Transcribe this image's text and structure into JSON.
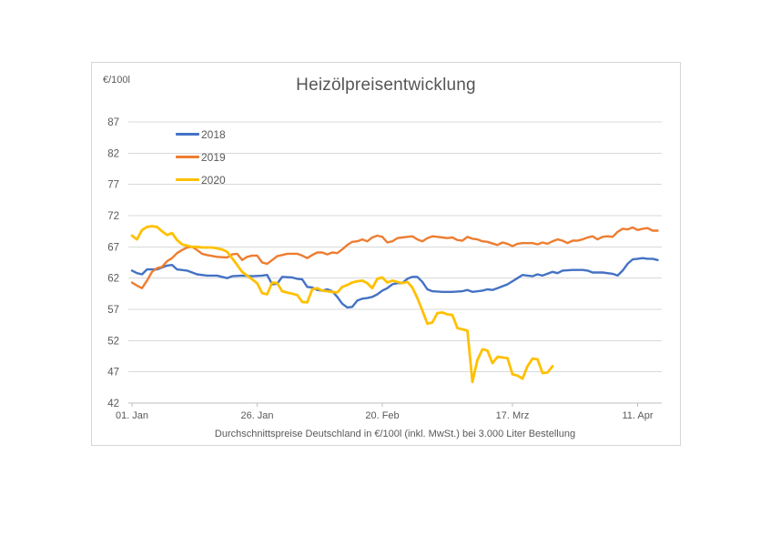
{
  "chart": {
    "title": "Heizölpreisentwicklung",
    "unit_label": "€/100l",
    "footnote": "Durchschnittspreise Deutschland in €/100l (inkl. MwSt.) bei 3.000 Liter Bestellung"
  },
  "chart_data": {
    "type": "line",
    "title": "Heizölpreisentwicklung",
    "xlabel": "",
    "ylabel": "€/100l",
    "ylim": [
      42,
      87
    ],
    "grid": true,
    "legend_position": "inside-top-left",
    "colors": {
      "grid": "#d9d9d9",
      "axis": "#bfbfbf",
      "text": "#595959"
    },
    "y_axis": {
      "min": 42,
      "max": 87,
      "step": 5,
      "ticks": [
        87,
        82,
        77,
        72,
        67,
        62,
        57,
        52,
        47,
        42
      ]
    },
    "x_axis": {
      "unit": "day index from Jan 1",
      "day_span": 106,
      "ticks": [
        {
          "day": 0,
          "label": "01. Jan"
        },
        {
          "day": 25,
          "label": "26. Jan"
        },
        {
          "day": 50,
          "label": "20. Feb"
        },
        {
          "day": 76,
          "label": "17. Mrz"
        },
        {
          "day": 101,
          "label": "11. Apr"
        }
      ]
    },
    "series": [
      {
        "name": "2018",
        "color": "#4472C4",
        "points": [
          [
            0,
            63.2
          ],
          [
            1,
            62.8
          ],
          [
            2,
            62.6
          ],
          [
            3,
            63.4
          ],
          [
            5,
            63.4
          ],
          [
            7,
            64.0
          ],
          [
            8,
            64.1
          ],
          [
            9,
            63.4
          ],
          [
            11,
            63.2
          ],
          [
            13,
            62.6
          ],
          [
            15,
            62.4
          ],
          [
            17,
            62.4
          ],
          [
            19,
            62.0
          ],
          [
            20,
            62.3
          ],
          [
            22,
            62.4
          ],
          [
            24,
            62.3
          ],
          [
            26,
            62.4
          ],
          [
            27,
            62.5
          ],
          [
            28,
            61.0
          ],
          [
            29,
            61.1
          ],
          [
            30,
            62.2
          ],
          [
            32,
            62.1
          ],
          [
            33,
            61.9
          ],
          [
            34,
            61.8
          ],
          [
            35,
            60.6
          ],
          [
            36,
            60.5
          ],
          [
            37,
            60.1
          ],
          [
            38,
            60.0
          ],
          [
            39,
            60.2
          ],
          [
            40,
            59.9
          ],
          [
            41,
            59.0
          ],
          [
            42,
            57.9
          ],
          [
            43,
            57.3
          ],
          [
            44,
            57.4
          ],
          [
            45,
            58.4
          ],
          [
            46,
            58.7
          ],
          [
            47,
            58.8
          ],
          [
            48,
            59.0
          ],
          [
            49,
            59.4
          ],
          [
            50,
            60.0
          ],
          [
            51,
            60.4
          ],
          [
            52,
            61.0
          ],
          [
            53,
            61.2
          ],
          [
            54,
            61.2
          ],
          [
            55,
            61.9
          ],
          [
            56,
            62.2
          ],
          [
            57,
            62.2
          ],
          [
            58,
            61.4
          ],
          [
            59,
            60.2
          ],
          [
            60,
            59.9
          ],
          [
            62,
            59.8
          ],
          [
            64,
            59.8
          ],
          [
            66,
            59.9
          ],
          [
            67,
            60.1
          ],
          [
            68,
            59.8
          ],
          [
            70,
            60.0
          ],
          [
            71,
            60.2
          ],
          [
            72,
            60.1
          ],
          [
            73,
            60.4
          ],
          [
            74,
            60.7
          ],
          [
            75,
            61.0
          ],
          [
            76,
            61.5
          ],
          [
            77,
            62.0
          ],
          [
            78,
            62.5
          ],
          [
            79,
            62.4
          ],
          [
            80,
            62.3
          ],
          [
            81,
            62.6
          ],
          [
            82,
            62.4
          ],
          [
            84,
            63.0
          ],
          [
            85,
            62.8
          ],
          [
            86,
            63.2
          ],
          [
            88,
            63.3
          ],
          [
            90,
            63.3
          ],
          [
            91,
            63.2
          ],
          [
            92,
            62.9
          ],
          [
            94,
            62.9
          ],
          [
            96,
            62.7
          ],
          [
            97,
            62.4
          ],
          [
            98,
            63.2
          ],
          [
            99,
            64.3
          ],
          [
            100,
            65.0
          ],
          [
            101,
            65.1
          ],
          [
            102,
            65.2
          ],
          [
            103,
            65.1
          ],
          [
            104,
            65.1
          ],
          [
            105,
            64.9
          ]
        ]
      },
      {
        "name": "2019",
        "color": "#ED7D31",
        "points": [
          [
            0,
            61.3
          ],
          [
            1,
            60.8
          ],
          [
            2,
            60.4
          ],
          [
            3,
            61.6
          ],
          [
            4,
            63.0
          ],
          [
            5,
            63.6
          ],
          [
            6,
            63.8
          ],
          [
            7,
            64.7
          ],
          [
            8,
            65.2
          ],
          [
            9,
            66.0
          ],
          [
            10,
            66.5
          ],
          [
            11,
            66.9
          ],
          [
            12,
            67.0
          ],
          [
            13,
            66.5
          ],
          [
            14,
            65.9
          ],
          [
            15,
            65.7
          ],
          [
            17,
            65.4
          ],
          [
            19,
            65.3
          ],
          [
            20,
            65.8
          ],
          [
            21,
            65.9
          ],
          [
            22,
            64.9
          ],
          [
            23,
            65.4
          ],
          [
            24,
            65.6
          ],
          [
            25,
            65.6
          ],
          [
            26,
            64.5
          ],
          [
            27,
            64.3
          ],
          [
            28,
            64.9
          ],
          [
            29,
            65.5
          ],
          [
            30,
            65.7
          ],
          [
            31,
            65.9
          ],
          [
            33,
            65.9
          ],
          [
            34,
            65.6
          ],
          [
            35,
            65.2
          ],
          [
            36,
            65.7
          ],
          [
            37,
            66.1
          ],
          [
            38,
            66.1
          ],
          [
            39,
            65.8
          ],
          [
            40,
            66.1
          ],
          [
            41,
            66.0
          ],
          [
            42,
            66.6
          ],
          [
            43,
            67.3
          ],
          [
            44,
            67.8
          ],
          [
            45,
            67.9
          ],
          [
            46,
            68.2
          ],
          [
            47,
            67.9
          ],
          [
            48,
            68.5
          ],
          [
            49,
            68.8
          ],
          [
            50,
            68.6
          ],
          [
            51,
            67.7
          ],
          [
            52,
            67.9
          ],
          [
            53,
            68.4
          ],
          [
            54,
            68.5
          ],
          [
            55,
            68.6
          ],
          [
            56,
            68.7
          ],
          [
            57,
            68.2
          ],
          [
            58,
            67.9
          ],
          [
            59,
            68.4
          ],
          [
            60,
            68.7
          ],
          [
            61,
            68.6
          ],
          [
            62,
            68.5
          ],
          [
            63,
            68.4
          ],
          [
            64,
            68.5
          ],
          [
            65,
            68.1
          ],
          [
            66,
            68.0
          ],
          [
            67,
            68.6
          ],
          [
            68,
            68.3
          ],
          [
            69,
            68.2
          ],
          [
            70,
            67.9
          ],
          [
            71,
            67.8
          ],
          [
            73,
            67.3
          ],
          [
            74,
            67.7
          ],
          [
            75,
            67.5
          ],
          [
            76,
            67.1
          ],
          [
            77,
            67.5
          ],
          [
            78,
            67.6
          ],
          [
            80,
            67.6
          ],
          [
            81,
            67.4
          ],
          [
            82,
            67.7
          ],
          [
            83,
            67.5
          ],
          [
            84,
            67.9
          ],
          [
            85,
            68.2
          ],
          [
            86,
            68.0
          ],
          [
            87,
            67.6
          ],
          [
            88,
            68.0
          ],
          [
            89,
            68.0
          ],
          [
            90,
            68.2
          ],
          [
            91,
            68.5
          ],
          [
            92,
            68.7
          ],
          [
            93,
            68.2
          ],
          [
            94,
            68.6
          ],
          [
            95,
            68.7
          ],
          [
            96,
            68.6
          ],
          [
            97,
            69.4
          ],
          [
            98,
            69.9
          ],
          [
            99,
            69.8
          ],
          [
            100,
            70.1
          ],
          [
            101,
            69.7
          ],
          [
            102,
            69.9
          ],
          [
            103,
            70.0
          ],
          [
            104,
            69.6
          ],
          [
            105,
            69.6
          ]
        ]
      },
      {
        "name": "2020",
        "color": "#FFC000",
        "points": [
          [
            0,
            68.8
          ],
          [
            1,
            68.2
          ],
          [
            2,
            69.7
          ],
          [
            3,
            70.2
          ],
          [
            4,
            70.3
          ],
          [
            5,
            70.2
          ],
          [
            6,
            69.5
          ],
          [
            7,
            68.9
          ],
          [
            8,
            69.2
          ],
          [
            9,
            68.1
          ],
          [
            10,
            67.4
          ],
          [
            11,
            67.2
          ],
          [
            12,
            67.0
          ],
          [
            13,
            67.0
          ],
          [
            14,
            66.9
          ],
          [
            16,
            66.9
          ],
          [
            18,
            66.6
          ],
          [
            19,
            66.2
          ],
          [
            20,
            65.2
          ],
          [
            21,
            64.1
          ],
          [
            22,
            63.0
          ],
          [
            23,
            62.4
          ],
          [
            24,
            61.8
          ],
          [
            25,
            61.2
          ],
          [
            26,
            59.6
          ],
          [
            27,
            59.4
          ],
          [
            28,
            61.3
          ],
          [
            29,
            61.2
          ],
          [
            30,
            59.9
          ],
          [
            31,
            59.7
          ],
          [
            32,
            59.5
          ],
          [
            33,
            59.3
          ],
          [
            34,
            58.2
          ],
          [
            35,
            58.1
          ],
          [
            36,
            60.2
          ],
          [
            37,
            60.4
          ],
          [
            38,
            60.0
          ],
          [
            39,
            59.9
          ],
          [
            40,
            59.8
          ],
          [
            41,
            59.7
          ],
          [
            42,
            60.6
          ],
          [
            43,
            60.9
          ],
          [
            44,
            61.3
          ],
          [
            45,
            61.5
          ],
          [
            46,
            61.6
          ],
          [
            47,
            61.2
          ],
          [
            48,
            60.4
          ],
          [
            49,
            61.9
          ],
          [
            50,
            62.1
          ],
          [
            51,
            61.3
          ],
          [
            52,
            61.6
          ],
          [
            53,
            61.4
          ],
          [
            54,
            61.2
          ],
          [
            55,
            61.4
          ],
          [
            56,
            60.5
          ],
          [
            57,
            58.8
          ],
          [
            58,
            56.8
          ],
          [
            59,
            54.7
          ],
          [
            60,
            54.9
          ],
          [
            61,
            56.4
          ],
          [
            62,
            56.5
          ],
          [
            63,
            56.2
          ],
          [
            64,
            56.1
          ],
          [
            65,
            54.0
          ],
          [
            66,
            53.8
          ],
          [
            67,
            53.6
          ],
          [
            68,
            45.4
          ],
          [
            69,
            48.9
          ],
          [
            70,
            50.6
          ],
          [
            71,
            50.4
          ],
          [
            72,
            48.4
          ],
          [
            73,
            49.4
          ],
          [
            74,
            49.3
          ],
          [
            75,
            49.2
          ],
          [
            76,
            46.6
          ],
          [
            77,
            46.4
          ],
          [
            78,
            45.9
          ],
          [
            79,
            47.9
          ],
          [
            80,
            49.1
          ],
          [
            81,
            49.0
          ],
          [
            82,
            46.8
          ],
          [
            83,
            46.9
          ],
          [
            84,
            47.9
          ]
        ]
      }
    ]
  }
}
